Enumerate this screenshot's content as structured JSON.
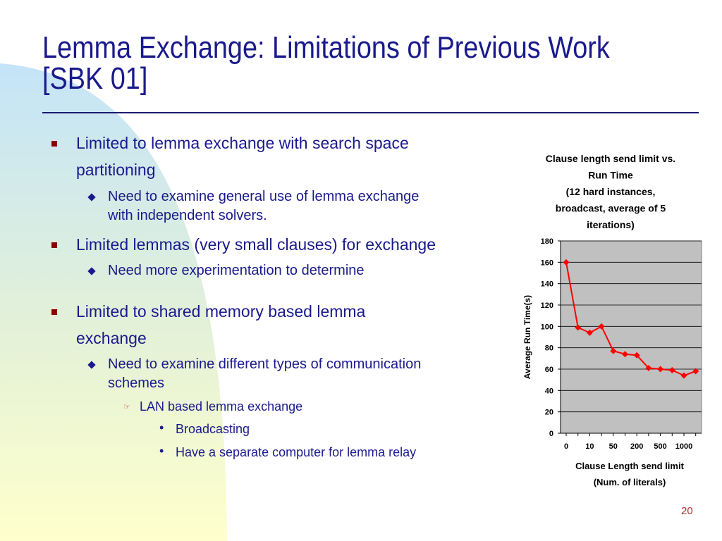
{
  "slide": {
    "title_line1": "Lemma Exchange: Limitations of Previous Work",
    "title_line2": "[SBK 01]",
    "page_number": "20"
  },
  "bullets": {
    "b1_line1": "Limited  to lemma exchange with search space",
    "b1_line2": "partitioning",
    "b1_sub1_line1": "Need to examine general use of lemma exchange",
    "b1_sub1_line2": "with independent solvers.",
    "b2": "Limited lemmas (very small clauses) for exchange",
    "b2_sub1": "Need more experimentation to determine",
    "b3_line1": "Limited to shared memory based lemma",
    "b3_line2": "exchange",
    "b3_sub1_line1": "Need to examine different types of communication",
    "b3_sub1_line2": "schemes",
    "b3_sub1_sub1": "LAN based lemma exchange",
    "b3_sub1_sub1_a": "Broadcasting",
    "b3_sub1_sub1_b": "Have a separate computer for lemma relay"
  },
  "colors": {
    "title": "#1a1a8c",
    "text": "#1a1a8c",
    "bullet_level1": "#8b0000",
    "series": "#ff0000",
    "plot_bg": "#c0c0c0"
  },
  "chart_data": {
    "type": "line",
    "title_lines": [
      "Clause length  send limit vs.",
      "Run Time",
      "(12 hard instances,",
      "broadcast, average of 5",
      "iterations)"
    ],
    "xlabel_lines": [
      "Clause Length send limit",
      "(Num. of literals)"
    ],
    "ylabel": "Average Run Time(s)",
    "ylim": [
      0,
      180
    ],
    "y_ticks": [
      0,
      20,
      40,
      60,
      80,
      100,
      120,
      140,
      160,
      180
    ],
    "x_tick_labels": [
      "0",
      "10",
      "50",
      "200",
      "500",
      "1000"
    ],
    "x_tick_positions": [
      0,
      2,
      4,
      6,
      8,
      10
    ],
    "grid": true,
    "legend": "none",
    "series": [
      {
        "x": [
          0,
          1,
          2,
          3,
          4,
          5,
          6,
          7,
          8,
          9,
          10,
          11
        ],
        "values": [
          160,
          99,
          94,
          100,
          77,
          74,
          73,
          61,
          60,
          59,
          54,
          58
        ]
      }
    ]
  }
}
